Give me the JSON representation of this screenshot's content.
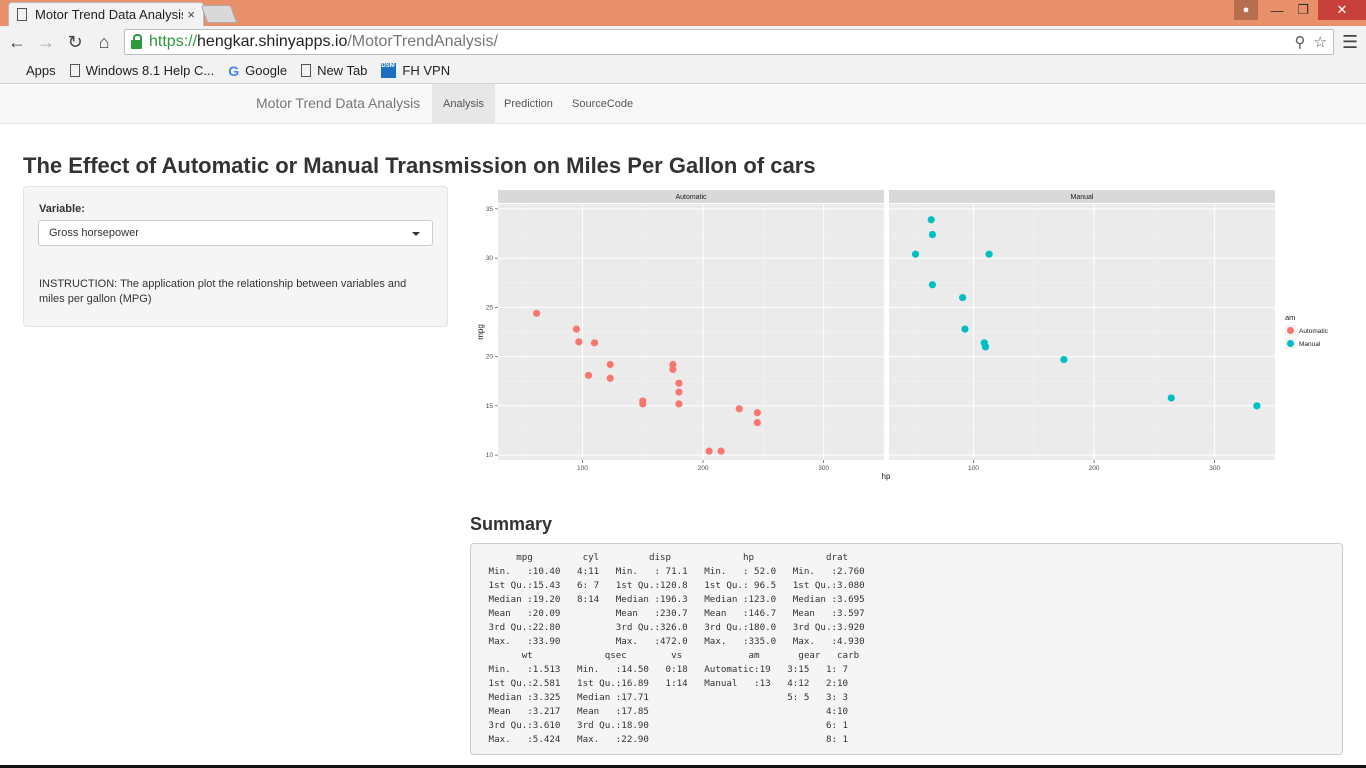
{
  "browser": {
    "tab_title": "Motor Trend Data Analysis",
    "tab_close": "×",
    "url": {
      "scheme": "https://",
      "host": "hengkar.shinyapps.io",
      "path": "/MotorTrendAnalysis/"
    },
    "bookmarks": [
      {
        "label": "Apps",
        "icon": "apps-icon"
      },
      {
        "label": "Windows 8.1 Help C...",
        "icon": "page-icon"
      },
      {
        "label": "Google",
        "icon": "google-icon"
      },
      {
        "label": "New Tab",
        "icon": "page-icon"
      },
      {
        "label": "FH VPN",
        "icon": "dsm-icon"
      }
    ]
  },
  "navbar": {
    "brand": "Motor Trend Data Analysis",
    "tabs": [
      "Analysis",
      "Prediction",
      "SourceCode"
    ],
    "active_tab": "Analysis"
  },
  "page": {
    "title": "The Effect of Automatic or Manual Transmission on Miles Per Gallon of cars"
  },
  "sidebar": {
    "variable_label": "Variable:",
    "selected_variable": "Gross horsepower",
    "instruction": "INSTRUCTION: The application plot the relationship between variables and miles per gallon (MPG)"
  },
  "chart_data": {
    "type": "scatter",
    "facets": [
      "Automatic",
      "Manual"
    ],
    "xlabel": "hp",
    "ylabel": "mpg",
    "xlim": [
      30,
      350
    ],
    "ylim": [
      9.5,
      35.5
    ],
    "x_ticks": [
      100,
      200,
      300
    ],
    "y_ticks": [
      10,
      15,
      20,
      25,
      30,
      35
    ],
    "grid": true,
    "legend": {
      "title": "am",
      "placement": "right",
      "entries": [
        "Automatic",
        "Manual"
      ]
    },
    "colors": {
      "Automatic": "#f8766d",
      "Manual": "#00bfc4"
    },
    "series": [
      {
        "name": "Automatic",
        "points": [
          [
            62,
            24.4
          ],
          [
            95,
            22.8
          ],
          [
            97,
            21.5
          ],
          [
            110,
            21.4
          ],
          [
            105,
            18.1
          ],
          [
            123,
            19.2
          ],
          [
            123,
            17.8
          ],
          [
            150,
            15.5
          ],
          [
            150,
            15.2
          ],
          [
            175,
            19.2
          ],
          [
            175,
            18.7
          ],
          [
            180,
            17.3
          ],
          [
            180,
            16.4
          ],
          [
            180,
            15.2
          ],
          [
            205,
            10.4
          ],
          [
            215,
            10.4
          ],
          [
            230,
            14.7
          ],
          [
            245,
            14.3
          ],
          [
            245,
            13.3
          ]
        ]
      },
      {
        "name": "Manual",
        "points": [
          [
            52,
            30.4
          ],
          [
            65,
            33.9
          ],
          [
            66,
            32.4
          ],
          [
            66,
            27.3
          ],
          [
            91,
            26.0
          ],
          [
            93,
            22.8
          ],
          [
            113,
            30.4
          ],
          [
            109,
            21.4
          ],
          [
            110,
            21.0
          ],
          [
            110,
            21.0
          ],
          [
            175,
            19.7
          ],
          [
            264,
            15.8
          ],
          [
            335,
            15.0
          ]
        ]
      }
    ]
  },
  "summary": {
    "title": "Summary",
    "text": "      mpg         cyl         disp             hp             drat      \n Min.   :10.40   4:11   Min.   : 71.1   Min.   : 52.0   Min.   :2.760  \n 1st Qu.:15.43   6: 7   1st Qu.:120.8   1st Qu.: 96.5   1st Qu.:3.080  \n Median :19.20   8:14   Median :196.3   Median :123.0   Median :3.695  \n Mean   :20.09          Mean   :230.7   Mean   :146.7   Mean   :3.597  \n 3rd Qu.:22.80          3rd Qu.:326.0   3rd Qu.:180.0   3rd Qu.:3.920  \n Max.   :33.90          Max.   :472.0   Max.   :335.0   Max.   :4.930  \n       wt             qsec        vs            am       gear   carb  \n Min.   :1.513   Min.   :14.50   0:18   Automatic:19   3:15   1: 7  \n 1st Qu.:2.581   1st Qu.:16.89   1:14   Manual   :13   4:12   2:10  \n Median :3.325   Median :17.71                         5: 5   3: 3  \n Mean   :3.217   Mean   :17.85                                4:10  \n 3rd Qu.:3.610   3rd Qu.:18.90                                6: 1  \n Max.   :5.424   Max.   :22.90                                8: 1  "
  }
}
